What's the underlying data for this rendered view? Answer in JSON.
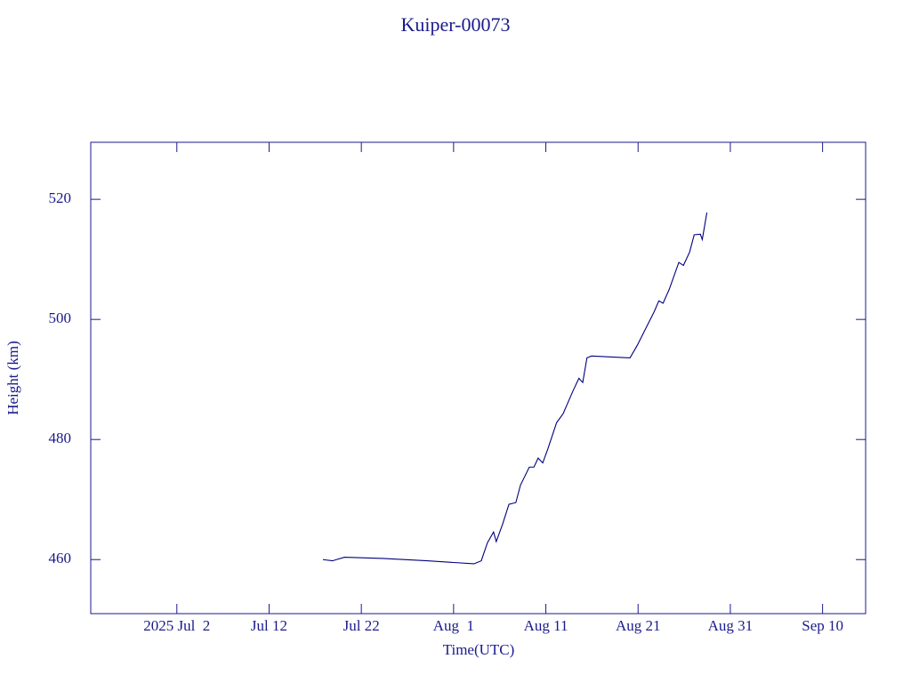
{
  "chart_data": {
    "type": "line",
    "title": "Kuiper-00073",
    "xlabel": "Time(UTC)",
    "ylabel": "Height (km)",
    "color": "#00007f",
    "xlim": [
      "2025-06-22T16:00",
      "2025-09-14T16:00"
    ],
    "ylim": [
      451,
      529.5
    ],
    "xticks": [
      {
        "value": "2025-07-02",
        "label": "2025 Jul  2"
      },
      {
        "value": "2025-07-12",
        "label": "Jul 12"
      },
      {
        "value": "2025-07-22",
        "label": "Jul 22"
      },
      {
        "value": "2025-08-01",
        "label": "Aug  1"
      },
      {
        "value": "2025-08-11",
        "label": "Aug 11"
      },
      {
        "value": "2025-08-21",
        "label": "Aug 21"
      },
      {
        "value": "2025-08-31",
        "label": "Aug 31"
      },
      {
        "value": "2025-09-10",
        "label": "Sep 10"
      }
    ],
    "yticks": [
      460,
      480,
      500,
      520
    ],
    "x": [
      "2025-07-17T20:00",
      "2025-07-18T21:00",
      "2025-07-20T04:00",
      "2025-07-24T08:00",
      "2025-07-29T03:00",
      "2025-08-03T05:00",
      "2025-08-04T00:00",
      "2025-08-04T16:00",
      "2025-08-05T08:00",
      "2025-08-05T15:00",
      "2025-08-06T07:00",
      "2025-08-07T00:00",
      "2025-08-07T18:00",
      "2025-08-08T06:00",
      "2025-08-09T05:00",
      "2025-08-09T17:00",
      "2025-08-10T04:00",
      "2025-08-10T16:00",
      "2025-08-11T05:00",
      "2025-08-12T04:00",
      "2025-08-12T21:00",
      "2025-08-13T22:00",
      "2025-08-14T14:00",
      "2025-08-15T00:00",
      "2025-08-15T11:00",
      "2025-08-15T23:00",
      "2025-08-20T03:00",
      "2025-08-20T22:00",
      "2025-08-22T18:00",
      "2025-08-23T06:00",
      "2025-08-23T17:00",
      "2025-08-24T09:00",
      "2025-08-25T10:00",
      "2025-08-25T22:00",
      "2025-08-26T14:00",
      "2025-08-27T02:00",
      "2025-08-27T18:00",
      "2025-08-27T23:00",
      "2025-08-28T11:00"
    ],
    "values": [
      460,
      459.8,
      460.4,
      460.2,
      459.8,
      459.3,
      459.8,
      462.8,
      464.6,
      463,
      465.8,
      469.2,
      469.5,
      472.4,
      475.4,
      475.4,
      476.9,
      476.1,
      478.4,
      482.8,
      484.3,
      488,
      490.2,
      489.5,
      493.6,
      493.9,
      493.6,
      495.7,
      501.3,
      503.1,
      502.7,
      505,
      509.5,
      509,
      511.2,
      514.1,
      514.2,
      513.3,
      517.8
    ]
  }
}
